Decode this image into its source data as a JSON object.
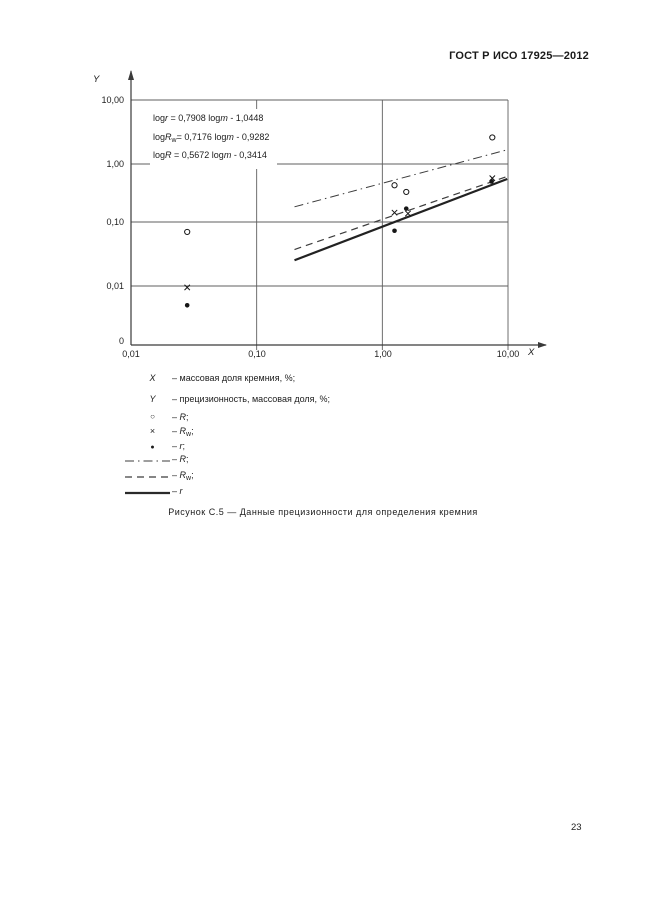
{
  "page": {
    "header": "ГОСТ Р ИСО 17925—2012",
    "page_number": "23"
  },
  "figure": {
    "caption": "Рисунок С.5 — Данные прецизионности для определения кремния",
    "equations": [
      {
        "lead": "log",
        "v1": "r",
        "sub": "",
        "mid": " = 0,7908 log",
        "v2": "m",
        "tail": " - 1,0448"
      },
      {
        "lead": "log",
        "v1": "R",
        "sub": "w",
        "mid": "= 0,7176 log",
        "v2": "m",
        "tail": " - 0,9282"
      },
      {
        "lead": "log",
        "v1": "R",
        "sub": "",
        "mid": " = 0,5672 log",
        "v2": "m",
        "tail": " - 0,3414"
      }
    ],
    "legend": [
      {
        "marker": "X",
        "pre": "– ",
        "var": "",
        "sub": "",
        "post": "массовая доля кремния, %;"
      },
      {
        "marker": "Y",
        "pre": "– ",
        "var": "",
        "sub": "",
        "post": "прецизионность, массовая доля, %;"
      },
      {
        "marker": "○",
        "pre": "– ",
        "var": "R",
        "sub": "",
        "post": ";"
      },
      {
        "marker": "×",
        "pre": "– ",
        "var": "R",
        "sub": "w",
        "post": ";"
      },
      {
        "marker": "●",
        "pre": "– ",
        "var": "r",
        "sub": "",
        "post": ";"
      },
      {
        "marker": "",
        "pre": "– ",
        "var": "R",
        "sub": "",
        "post": ";"
      },
      {
        "marker": "",
        "pre": "– ",
        "var": "R",
        "sub": "w",
        "post": ";"
      },
      {
        "marker": "",
        "pre": "– ",
        "var": "r",
        "sub": "",
        "post": ""
      }
    ]
  },
  "chart_data": {
    "type": "scatter",
    "title": "",
    "xlabel": "X",
    "ylabel": "Y",
    "x_scale": "log",
    "y_scale": "log",
    "xlim": [
      0.01,
      10
    ],
    "ylim": [
      0.001,
      10
    ],
    "grid": true,
    "x_tick_values": [
      0.01,
      0.1,
      1,
      10
    ],
    "x_tick_labels": [
      "0,01",
      "0,10",
      "1,00",
      "10,00"
    ],
    "y_tick_values": [
      10,
      1,
      0.1,
      0.01
    ],
    "y_tick_labels": [
      "10,00",
      "1,00",
      "0,10",
      "0,01"
    ],
    "origin_label": "0",
    "series": [
      {
        "name": "R",
        "marker": "circle",
        "points": [
          [
            0.028,
            0.07
          ],
          [
            1.25,
            0.43
          ],
          [
            1.55,
            0.33
          ],
          [
            7.5,
            2.6
          ]
        ]
      },
      {
        "name": "Rw",
        "marker": "x",
        "points": [
          [
            0.028,
            0.0095
          ],
          [
            1.25,
            0.145
          ],
          [
            1.6,
            0.14
          ],
          [
            7.5,
            0.57
          ]
        ]
      },
      {
        "name": "r",
        "marker": "dot",
        "points": [
          [
            0.028,
            0.005
          ],
          [
            1.25,
            0.073
          ],
          [
            1.55,
            0.17
          ],
          [
            7.4,
            0.5
          ]
        ]
      }
    ],
    "lines": [
      {
        "name": "R",
        "style": "dashdot",
        "slope": 0.5672,
        "intercept": -0.3414,
        "x_range": [
          0.2,
          9.85
        ]
      },
      {
        "name": "Rw",
        "style": "dashed",
        "slope": 0.7176,
        "intercept": -0.9282,
        "x_range": [
          0.2,
          9.85
        ]
      },
      {
        "name": "r",
        "style": "solid",
        "slope": 0.7908,
        "intercept": -1.0448,
        "x_range": [
          0.2,
          9.85
        ]
      }
    ]
  }
}
